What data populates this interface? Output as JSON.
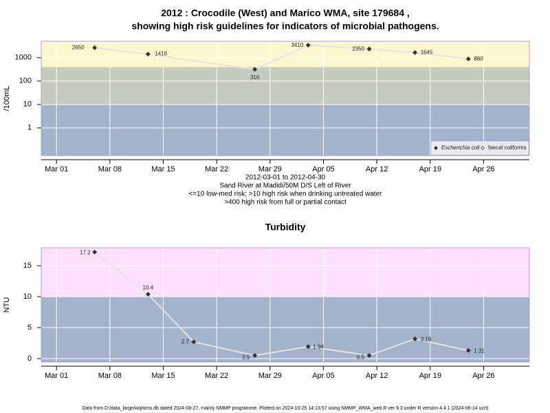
{
  "chart_data": [
    {
      "type": "line",
      "title": [
        "2012 : Crocodile (West) and Marico WMA, site 179684 ,",
        "showing high risk guidelines for indicators of microbial pathogens."
      ],
      "y_label": "/100mL",
      "notes": [
        "2012-03-01 to 2012-04-30",
        "Sand River at Madidi/50M D/S Left of River",
        "<=10 low-med risk; >10 high risk when drinking untreated water",
        ">400 high risk from full or partial contact"
      ],
      "x": [
        "2012-03-06",
        "2012-03-13",
        "2012-03-27",
        "2012-04-03",
        "2012-04-11",
        "2012-04-17",
        "2012-04-24"
      ],
      "series": [
        {
          "name": "Escherichia coli",
          "color": "#333333",
          "values": [
            2650,
            1416,
            316,
            3410,
            2350,
            1645,
            880
          ]
        },
        {
          "name": "faecal coliforms",
          "color": "#333333",
          "values": [
            null,
            null,
            null,
            null,
            null,
            null,
            null
          ]
        }
      ],
      "line_color": "#e4e4e4",
      "xlim": [
        "2012-02-28",
        "2012-05-02"
      ],
      "xticks": [
        {
          "value": "2012-03-01",
          "label": "Mar 01"
        },
        {
          "value": "2012-03-08",
          "label": "Mar 08"
        },
        {
          "value": "2012-03-15",
          "label": "Mar 15"
        },
        {
          "value": "2012-03-22",
          "label": "Mar 22"
        },
        {
          "value": "2012-03-29",
          "label": "Mar 29"
        },
        {
          "value": "2012-04-05",
          "label": "Apr 05"
        },
        {
          "value": "2012-04-12",
          "label": "Apr 12"
        },
        {
          "value": "2012-04-19",
          "label": "Apr 19"
        },
        {
          "value": "2012-04-26",
          "label": "Apr 26"
        }
      ],
      "ylim": [
        0.066,
        5000
      ],
      "log_y": true,
      "yticks": [
        1,
        10,
        100,
        1000
      ],
      "bands": [
        {
          "from": 0.066,
          "to": 10,
          "color": "#a3b3cc"
        },
        {
          "from": 10,
          "to": 400,
          "color": "#c5cbbd"
        },
        {
          "from": 400,
          "to": 5000,
          "color": "#fdf7cf"
        }
      ],
      "grid": true,
      "legend": "lower right"
    },
    {
      "type": "line",
      "title": "Turbidity",
      "y_label": "NTU",
      "x": [
        "2012-03-06",
        "2012-03-13",
        "2012-03-19",
        "2012-03-27",
        "2012-04-03",
        "2012-04-11",
        "2012-04-17",
        "2012-04-24"
      ],
      "series": [
        {
          "name": "Turbidity",
          "color": "#333333",
          "values": [
            17.2,
            10.4,
            2.7,
            0.5,
            1.94,
            0.5,
            3.18,
            1.31
          ]
        }
      ],
      "line_color": "#e4e4e4",
      "xlim": [
        "2012-02-28",
        "2012-05-02"
      ],
      "xticks": [
        {
          "value": "2012-03-01",
          "label": "Mar 01"
        },
        {
          "value": "2012-03-08",
          "label": "Mar 08"
        },
        {
          "value": "2012-03-15",
          "label": "Mar 15"
        },
        {
          "value": "2012-03-22",
          "label": "Mar 22"
        },
        {
          "value": "2012-03-29",
          "label": "Mar 29"
        },
        {
          "value": "2012-04-05",
          "label": "Apr 05"
        },
        {
          "value": "2012-04-12",
          "label": "Apr 12"
        },
        {
          "value": "2012-04-19",
          "label": "Apr 19"
        },
        {
          "value": "2012-04-26",
          "label": "Apr 26"
        }
      ],
      "ylim": [
        -0.56,
        17.9
      ],
      "log_y": false,
      "yticks": [
        0,
        5,
        10,
        15
      ],
      "bands": [
        {
          "from": -0.56,
          "to": 10,
          "color": "#a3b3cc"
        },
        {
          "from": 10,
          "to": 17.9,
          "color": "#fde0fb"
        }
      ],
      "grid": true
    }
  ],
  "footer": "Data from D:/data_large/wq/wms.db dated 2024-08-27, mainly NMMP programme. Plotted on 2024-10-25 14:13:57 using NMMP_WMA_web.R ver 9.3 under R version 4.4.1 (2024-06-14 ucrt)"
}
